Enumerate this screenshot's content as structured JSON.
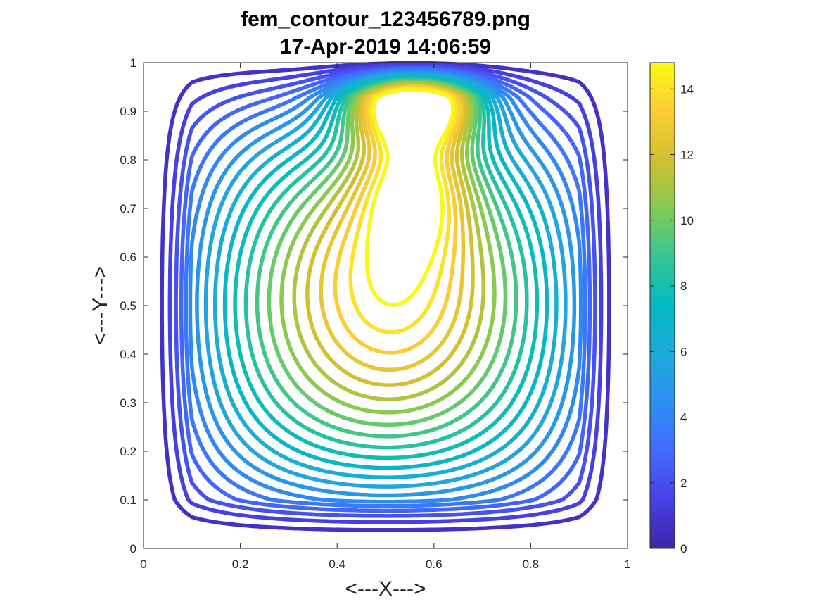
{
  "chart_data": {
    "type": "contour",
    "title": "fem_contour_123456789.png",
    "subtitle": "17-Apr-2019 14:06:59",
    "xlabel": "<---X--->",
    "ylabel": "<---Y--->",
    "xlim": [
      0,
      1
    ],
    "ylim": [
      0,
      1
    ],
    "x_ticks": [
      0,
      0.2,
      0.4,
      0.6,
      0.8,
      1
    ],
    "x_tick_labels": [
      "0",
      "0.2",
      "0.4",
      "0.6",
      "0.8",
      "1"
    ],
    "y_ticks": [
      0,
      0.1,
      0.2,
      0.3,
      0.4,
      0.5,
      0.6,
      0.7,
      0.8,
      0.9,
      1
    ],
    "y_tick_labels": [
      "0",
      "0.1",
      "0.2",
      "0.3",
      "0.4",
      "0.5",
      "0.6",
      "0.7",
      "0.8",
      "0.9",
      "1"
    ],
    "grid": false,
    "colormap": "parula",
    "colorbar": {
      "range": [
        0,
        14.8
      ],
      "ticks": [
        0,
        2,
        4,
        6,
        8,
        10,
        12,
        14
      ],
      "tick_labels": [
        "0",
        "2",
        "4",
        "6",
        "8",
        "10",
        "12",
        "14"
      ],
      "placement": "right"
    },
    "contour_levels": [
      0.7,
      1.4,
      2.1,
      2.8,
      3.5,
      4.2,
      4.9,
      5.6,
      6.3,
      7.0,
      7.7,
      8.4,
      9.1,
      9.8,
      10.5,
      11.2,
      11.9,
      12.6,
      13.3,
      14.0,
      14.7
    ],
    "peak_location": [
      0.56,
      0.77
    ]
  }
}
